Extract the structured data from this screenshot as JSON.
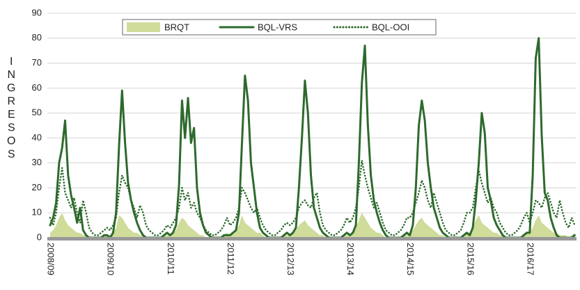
{
  "chart_data": {
    "type": "line",
    "y_label": "INGRESOS",
    "categories": [
      "2008/09",
      null,
      null,
      null,
      null,
      null,
      null,
      null,
      null,
      null,
      null,
      null,
      null,
      null,
      null,
      null,
      null,
      null,
      null,
      null,
      "2009/10",
      null,
      null,
      null,
      null,
      null,
      null,
      null,
      null,
      null,
      null,
      null,
      null,
      null,
      null,
      null,
      null,
      null,
      null,
      null,
      "2010/11",
      null,
      null,
      null,
      null,
      null,
      null,
      null,
      null,
      null,
      null,
      null,
      null,
      null,
      null,
      null,
      null,
      null,
      null,
      null,
      "2011/12",
      null,
      null,
      null,
      null,
      null,
      null,
      null,
      null,
      null,
      null,
      null,
      null,
      null,
      null,
      null,
      null,
      null,
      null,
      null,
      "2012/13",
      null,
      null,
      null,
      null,
      null,
      null,
      null,
      null,
      null,
      null,
      null,
      null,
      null,
      null,
      null,
      null,
      null,
      null,
      null,
      "2013/14",
      null,
      null,
      null,
      null,
      null,
      null,
      null,
      null,
      null,
      null,
      null,
      null,
      null,
      null,
      null,
      null,
      null,
      null,
      null,
      "2014/15",
      null,
      null,
      null,
      null,
      null,
      null,
      null,
      null,
      null,
      null,
      null,
      null,
      null,
      null,
      null,
      null,
      null,
      null,
      null,
      "2015/16",
      null,
      null,
      null,
      null,
      null,
      null,
      null,
      null,
      null,
      null,
      null,
      null,
      null,
      null,
      null,
      null,
      null,
      null,
      null,
      "2016/17",
      null,
      null,
      null,
      null,
      null,
      null,
      null,
      null,
      null,
      null,
      null,
      null,
      null,
      null,
      null
    ],
    "series": [
      {
        "name": "BRQT",
        "style": "area",
        "color": "#cfdc9a",
        "values": [
          2,
          3,
          5,
          8,
          10,
          7,
          5,
          4,
          3,
          2,
          2,
          1,
          1,
          0,
          0,
          0,
          0,
          0,
          1,
          1,
          1,
          2,
          4,
          9,
          8,
          6,
          4,
          3,
          2,
          2,
          1,
          1,
          0,
          0,
          0,
          0,
          0,
          0,
          1,
          1,
          1,
          2,
          3,
          6,
          8,
          7,
          5,
          4,
          3,
          2,
          1,
          1,
          0,
          0,
          0,
          0,
          0,
          0,
          1,
          2,
          1,
          2,
          3,
          5,
          9,
          6,
          5,
          4,
          3,
          2,
          2,
          1,
          0,
          0,
          0,
          0,
          0,
          0,
          1,
          1,
          1,
          2,
          3,
          5,
          6,
          7,
          5,
          4,
          3,
          2,
          1,
          1,
          0,
          0,
          0,
          0,
          0,
          0,
          1,
          1,
          1,
          2,
          4,
          7,
          10,
          8,
          6,
          4,
          3,
          2,
          2,
          1,
          0,
          0,
          0,
          0,
          0,
          0,
          1,
          1,
          2,
          3,
          5,
          7,
          8,
          6,
          5,
          4,
          3,
          2,
          1,
          1,
          0,
          0,
          0,
          0,
          0,
          0,
          1,
          2,
          2,
          4,
          7,
          9,
          6,
          5,
          4,
          3,
          2,
          2,
          1,
          1,
          0,
          0,
          0,
          0,
          0,
          0,
          1,
          2,
          2,
          4,
          7,
          9,
          6,
          5,
          4,
          3,
          2,
          2,
          1,
          1,
          1,
          0,
          1,
          2
        ]
      },
      {
        "name": "BQL-VRS",
        "style": "solid",
        "color": "#2d6a2d",
        "values": [
          5,
          8,
          14,
          30,
          36,
          47,
          25,
          17,
          12,
          6,
          12,
          3,
          1,
          0,
          0,
          0,
          0,
          0,
          1,
          1,
          0,
          2,
          10,
          37,
          59,
          38,
          22,
          15,
          10,
          6,
          3,
          1,
          0,
          0,
          0,
          0,
          0,
          0,
          1,
          2,
          1,
          2,
          5,
          21,
          55,
          40,
          56,
          38,
          44,
          20,
          10,
          5,
          2,
          1,
          0,
          0,
          0,
          0,
          1,
          1,
          1,
          2,
          3,
          10,
          38,
          65,
          55,
          30,
          20,
          10,
          4,
          2,
          1,
          0,
          0,
          0,
          0,
          0,
          1,
          2,
          1,
          2,
          4,
          20,
          40,
          63,
          50,
          25,
          12,
          8,
          4,
          2,
          1,
          0,
          0,
          0,
          0,
          0,
          1,
          2,
          1,
          2,
          5,
          30,
          62,
          77,
          45,
          25,
          15,
          10,
          6,
          3,
          1,
          0,
          0,
          0,
          0,
          0,
          1,
          2,
          1,
          5,
          20,
          45,
          55,
          47,
          30,
          20,
          12,
          8,
          4,
          2,
          1,
          0,
          0,
          0,
          0,
          0,
          1,
          2,
          1,
          4,
          15,
          30,
          50,
          42,
          20,
          15,
          8,
          5,
          3,
          1,
          0,
          0,
          0,
          0,
          0,
          0,
          1,
          2,
          2,
          25,
          72,
          80,
          41,
          18,
          15,
          8,
          4,
          1,
          0,
          0,
          0,
          0,
          0,
          1
        ]
      },
      {
        "name": "BQL-OOI",
        "style": "dotted",
        "color": "#2d6a2d",
        "values": [
          8,
          5,
          10,
          20,
          28,
          18,
          15,
          12,
          16,
          10,
          6,
          15,
          10,
          4,
          2,
          1,
          1,
          2,
          3,
          4,
          3,
          5,
          8,
          18,
          25,
          22,
          20,
          15,
          12,
          8,
          13,
          10,
          5,
          3,
          2,
          1,
          1,
          2,
          3,
          5,
          4,
          6,
          8,
          12,
          20,
          15,
          18,
          12,
          14,
          10,
          8,
          5,
          3,
          2,
          1,
          1,
          2,
          3,
          5,
          8,
          5,
          6,
          8,
          12,
          20,
          18,
          15,
          12,
          10,
          12,
          8,
          5,
          3,
          2,
          1,
          1,
          2,
          3,
          5,
          6,
          5,
          6,
          8,
          12,
          14,
          15,
          13,
          12,
          16,
          18,
          10,
          5,
          3,
          2,
          1,
          1,
          2,
          3,
          5,
          8,
          6,
          8,
          12,
          20,
          31,
          25,
          20,
          16,
          12,
          14,
          10,
          6,
          3,
          2,
          1,
          1,
          2,
          3,
          5,
          8,
          8,
          10,
          14,
          18,
          23,
          20,
          15,
          12,
          18,
          14,
          10,
          6,
          3,
          2,
          1,
          1,
          2,
          3,
          6,
          10,
          10,
          12,
          20,
          27,
          22,
          18,
          14,
          16,
          12,
          10,
          6,
          4,
          2,
          1,
          1,
          2,
          3,
          5,
          8,
          10,
          6,
          10,
          15,
          14,
          12,
          16,
          18,
          14,
          10,
          8,
          15,
          10,
          6,
          4,
          8,
          5
        ]
      }
    ],
    "ylim": [
      0,
      90
    ],
    "yticks": [
      0,
      10,
      20,
      30,
      40,
      50,
      60,
      70,
      80,
      90
    ],
    "grid": true,
    "legend": "top"
  }
}
